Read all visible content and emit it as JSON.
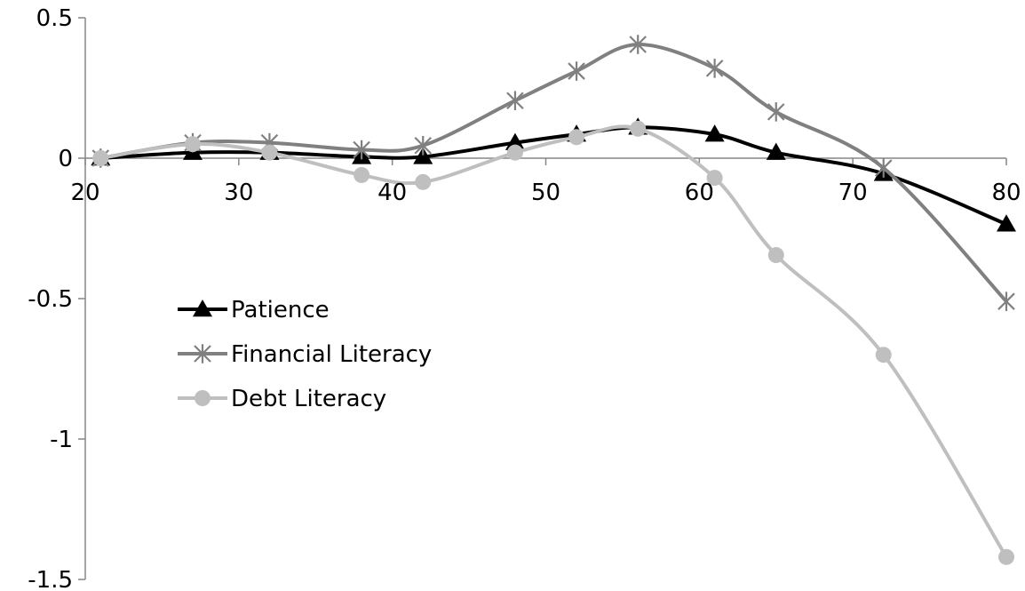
{
  "chart_data": {
    "type": "line",
    "title": "",
    "xlabel": "",
    "ylabel": "",
    "xlim": [
      20,
      80
    ],
    "ylim": [
      -1.5,
      0.5
    ],
    "x_ticks": [
      20,
      30,
      40,
      50,
      60,
      70,
      80
    ],
    "y_ticks": [
      0.5,
      0,
      -0.5,
      -1,
      -1.5
    ],
    "x_tick_labels": [
      "20",
      "30",
      "40",
      "50",
      "60",
      "70",
      "80"
    ],
    "y_tick_labels": [
      "0.5",
      "0",
      "-0.5",
      "-1",
      "-1.5"
    ],
    "grid": false,
    "smooth": true,
    "legend_position": "left",
    "series": [
      {
        "name": "Patience",
        "color": "#000000",
        "marker": "triangle",
        "x": [
          21,
          27,
          32,
          38,
          42,
          48,
          52,
          56,
          61,
          65,
          72,
          80
        ],
        "y": [
          0,
          0.02,
          0.02,
          0.005,
          0.005,
          0.055,
          0.085,
          0.11,
          0.085,
          0.02,
          -0.055,
          -0.235
        ]
      },
      {
        "name": "Financial Literacy",
        "color": "#808080",
        "marker": "star",
        "x": [
          21,
          27,
          32,
          38,
          42,
          48,
          52,
          56,
          61,
          65,
          72,
          80
        ],
        "y": [
          0,
          0.055,
          0.055,
          0.03,
          0.045,
          0.205,
          0.31,
          0.405,
          0.32,
          0.165,
          -0.035,
          -0.51
        ]
      },
      {
        "name": "Debt Literacy",
        "color": "#bfbfbf",
        "marker": "circle",
        "x": [
          21,
          27,
          32,
          38,
          42,
          48,
          52,
          56,
          61,
          65,
          72,
          80
        ],
        "y": [
          0,
          0.05,
          0.02,
          -0.06,
          -0.085,
          0.02,
          0.075,
          0.105,
          -0.07,
          -0.345,
          -0.7,
          -1.42
        ]
      }
    ]
  }
}
